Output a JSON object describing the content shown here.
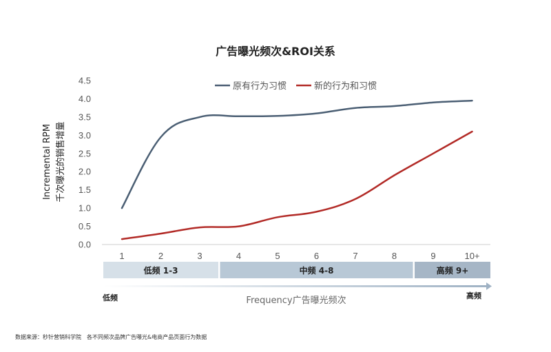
{
  "chart_data": {
    "type": "line",
    "title": "广告曝光频次&ROI关系",
    "ylabel_line1": "Incremental RPM",
    "ylabel_line2": "千次曝光的销售增量",
    "xlabel": "Frequency广告曝光频次",
    "categories": [
      "1",
      "2",
      "3",
      "4",
      "5",
      "6",
      "7",
      "8",
      "9",
      "10+"
    ],
    "ylim": [
      0,
      4.5
    ],
    "yticks": [
      "0.0",
      "0.5",
      "1.0",
      "1.5",
      "2.0",
      "2.5",
      "3.0",
      "3.5",
      "4.0",
      "4.5"
    ],
    "legend_position": "top-center",
    "series": [
      {
        "name": "原有行为习惯",
        "color": "#4a5e73",
        "values": [
          1.0,
          2.95,
          3.5,
          3.52,
          3.53,
          3.6,
          3.75,
          3.8,
          3.9,
          3.95
        ]
      },
      {
        "name": "新的行为和习惯",
        "color": "#b22a26",
        "values": [
          0.15,
          0.3,
          0.47,
          0.5,
          0.75,
          0.9,
          1.25,
          1.9,
          2.5,
          3.1
        ]
      }
    ],
    "bands": [
      {
        "label": "低频 1-3",
        "from": "1",
        "to": "3",
        "color": "#d6e0e8"
      },
      {
        "label": "中频 4-8",
        "from": "4",
        "to": "8",
        "color": "#b8c8d6"
      },
      {
        "label": "高频 9+",
        "from": "9",
        "to": "10+",
        "color": "#a6b6c6"
      }
    ],
    "axis_start_label": "低频",
    "axis_end_label": "高频",
    "grid": false
  },
  "source_note": "数据来源：秒针营销科学院　各不同频次品牌广告曝光&电商产品页面行为数据"
}
